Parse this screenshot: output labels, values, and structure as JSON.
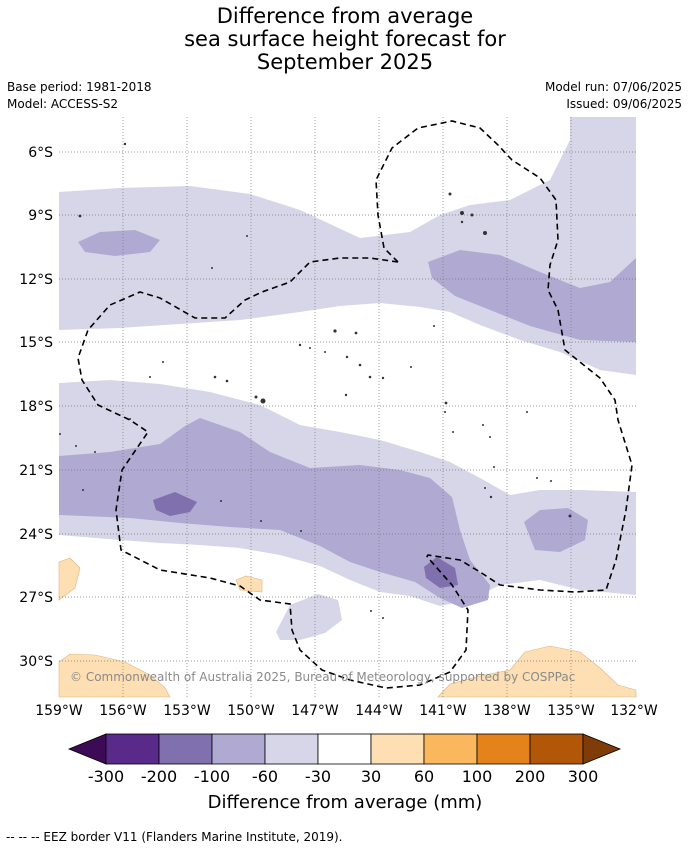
{
  "title": {
    "line1": "Difference from average",
    "line2": "sea surface height forecast for",
    "line3": "September 2025"
  },
  "meta": {
    "base_period": "Base period: 1981-2018",
    "model": "Model: ACCESS-S2",
    "model_run": "Model run: 07/06/2025",
    "issued": "Issued: 09/06/2025"
  },
  "map": {
    "lat_labels": [
      "6°S",
      "9°S",
      "12°S",
      "15°S",
      "18°S",
      "21°S",
      "24°S",
      "27°S",
      "30°S"
    ],
    "lon_labels": [
      "159°W",
      "156°W",
      "153°W",
      "150°W",
      "147°W",
      "144°W",
      "141°W",
      "138°W",
      "135°W",
      "132°W"
    ],
    "copyright": "© Commonwealth of Australia 2025, Bureau of Meteorology, supported by COSPPac"
  },
  "colorbar": {
    "title": "Difference from average (mm)",
    "ticks": [
      "-300",
      "-200",
      "-100",
      "-60",
      "-30",
      "30",
      "60",
      "100",
      "200",
      "300"
    ],
    "colors": [
      "#3d0b55",
      "#5a2a8a",
      "#8070ae",
      "#b0a9d2",
      "#d7d6e8",
      "#ffffff",
      "#fedfb3",
      "#fbb75e",
      "#e3831a",
      "#b25608",
      "#7f3b08"
    ]
  },
  "footnote": "-- -- -- EEZ border V11 (Flanders Marine Institute, 2019)."
}
